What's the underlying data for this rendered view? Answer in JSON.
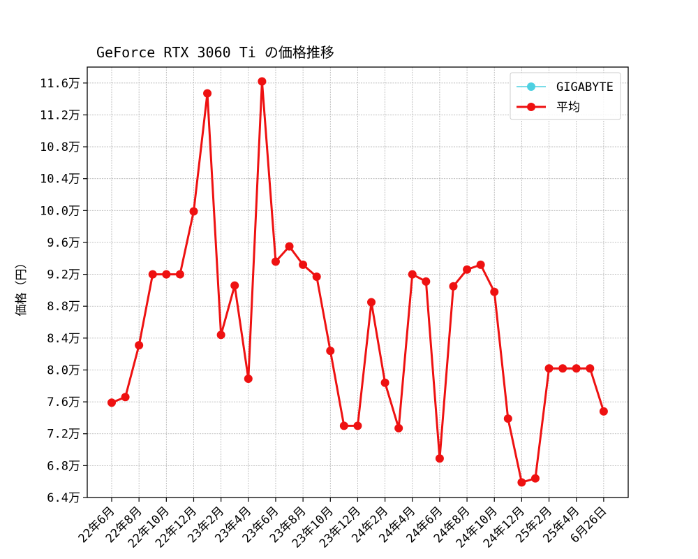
{
  "chart_data": {
    "type": "line",
    "title": "GeForce RTX 3060 Ti の価格推移",
    "ylabel": "価格（円）",
    "xlabel": "",
    "ylim": [
      64000,
      118000
    ],
    "y_ticks": [
      64000,
      68000,
      72000,
      76000,
      80000,
      84000,
      88000,
      92000,
      96000,
      100000,
      104000,
      108000,
      112000,
      116000
    ],
    "y_tick_labels": [
      "6.4万",
      "6.8万",
      "7.2万",
      "7.6万",
      "8.0万",
      "8.4万",
      "8.8万",
      "9.2万",
      "9.6万",
      "10.0万",
      "10.4万",
      "10.8万",
      "11.2万",
      "11.6万"
    ],
    "x_tick_labels": [
      "22年6月",
      "22年8月",
      "22年10月",
      "22年12月",
      "23年2月",
      "23年4月",
      "23年6月",
      "23年8月",
      "23年10月",
      "23年12月",
      "24年2月",
      "24年4月",
      "24年6月",
      "24年8月",
      "24年10月",
      "24年12月",
      "25年2月",
      "25年4月",
      "6月26日"
    ],
    "grid": true,
    "legend_position": "top-right",
    "series": [
      {
        "name": "GIGABYTE",
        "color": "#4dd0e1",
        "values": []
      },
      {
        "name": "平均",
        "color": "#ee1111",
        "values": [
          75900,
          76600,
          83100,
          92000,
          92000,
          92000,
          99900,
          114700,
          84400,
          90600,
          78900,
          116200,
          93600,
          95500,
          93200,
          91700,
          82400,
          73000,
          73000,
          88500,
          78400,
          72700,
          92000,
          91100,
          68900,
          90500,
          92600,
          93200,
          89800,
          73900,
          65900,
          66400,
          80200,
          80200,
          80200,
          80200,
          74800
        ]
      }
    ]
  }
}
